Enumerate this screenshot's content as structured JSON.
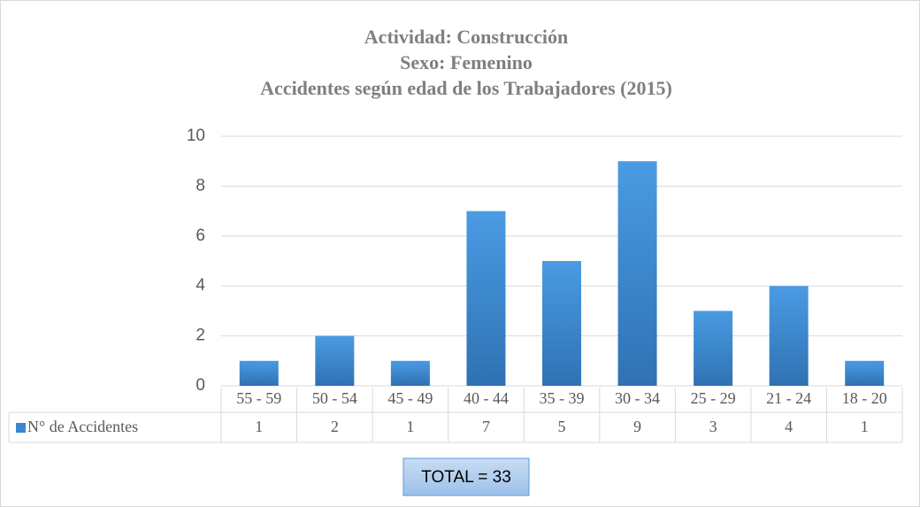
{
  "chart_data": {
    "type": "bar",
    "title": [
      "Actividad: Construcción",
      "Sexo: Femenino",
      "Accidentes según edad de los Trabajadores (2015)"
    ],
    "categories": [
      "55 - 59",
      "50 - 54",
      "45 - 49",
      "40 - 44",
      "35 - 39",
      "30 - 34",
      "25 - 29",
      "21 - 24",
      "18 - 20"
    ],
    "series": [
      {
        "name": "N° de Accidentes",
        "color": "#3b86d0",
        "values": [
          1,
          2,
          1,
          7,
          5,
          9,
          3,
          4,
          1
        ]
      }
    ],
    "ylim": [
      0,
      10
    ],
    "yticks": [
      0,
      2,
      4,
      6,
      8,
      10
    ],
    "grid": true,
    "data_table": true,
    "annotation": "TOTAL = 33"
  }
}
